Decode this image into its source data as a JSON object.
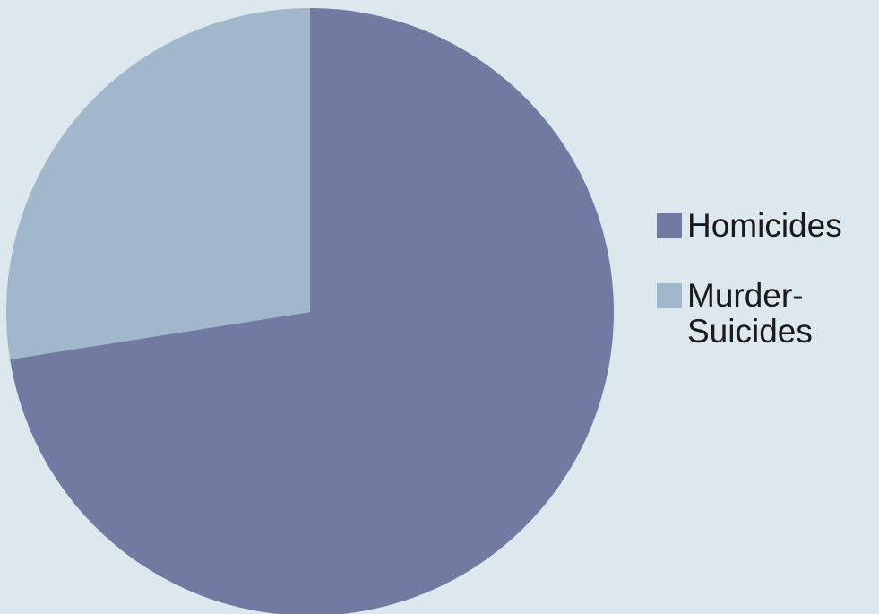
{
  "chart_data": {
    "type": "pie",
    "title": "",
    "slices": [
      {
        "name": "Homicides",
        "value": 72.5,
        "color": "#717AA1"
      },
      {
        "name": "Murder-\nSuicides",
        "value": 27.5,
        "color": "#A0B7CC"
      }
    ],
    "start_angle_deg": 0,
    "direction": "clockwise",
    "legend_position": "right"
  },
  "legend": {
    "items": [
      {
        "label": "Homicides",
        "color": "#717AA1"
      },
      {
        "label_line1": "Murder-",
        "label_line2": "Suicides",
        "color": "#A0B7CC"
      }
    ]
  }
}
